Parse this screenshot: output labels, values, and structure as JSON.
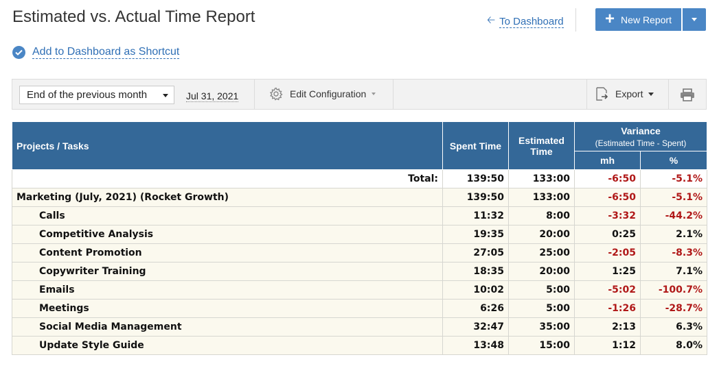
{
  "header": {
    "title": "Estimated vs. Actual Time Report",
    "to_dashboard": "To Dashboard",
    "new_report": "New Report",
    "add_shortcut": "Add to Dashboard as Shortcut"
  },
  "toolbar": {
    "period": "End of the previous month",
    "date": "Jul 31, 2021",
    "edit_config": "Edit Configuration",
    "export": "Export"
  },
  "table": {
    "headers": {
      "projects": "Projects / Tasks",
      "spent": "Spent Time",
      "estimated_line1": "Estimated",
      "estimated_line2": "Time",
      "variance": "Variance",
      "variance_sub": "(Estimated Time - Spent)",
      "mh": "mh",
      "pct": "%"
    },
    "total": {
      "label": "Total:",
      "spent": "139:50",
      "estimated": "133:00",
      "mh": "-6:50",
      "pct": "-5.1%"
    },
    "group": {
      "name": "Marketing (July, 2021) (Rocket Growth)",
      "spent": "139:50",
      "estimated": "133:00",
      "mh": "-6:50",
      "pct": "-5.1%"
    },
    "rows": [
      {
        "name": "Calls",
        "spent": "11:32",
        "estimated": "8:00",
        "mh": "-3:32",
        "pct": "-44.2%"
      },
      {
        "name": "Competitive Analysis",
        "spent": "19:35",
        "estimated": "20:00",
        "mh": "0:25",
        "pct": "2.1%"
      },
      {
        "name": "Content Promotion",
        "spent": "27:05",
        "estimated": "25:00",
        "mh": "-2:05",
        "pct": "-8.3%"
      },
      {
        "name": "Copywriter Training",
        "spent": "18:35",
        "estimated": "20:00",
        "mh": "1:25",
        "pct": "7.1%"
      },
      {
        "name": "Emails",
        "spent": "10:02",
        "estimated": "5:00",
        "mh": "-5:02",
        "pct": "-100.7%"
      },
      {
        "name": "Meetings",
        "spent": "6:26",
        "estimated": "5:00",
        "mh": "-1:26",
        "pct": "-28.7%"
      },
      {
        "name": "Social Media Management",
        "spent": "32:47",
        "estimated": "35:00",
        "mh": "2:13",
        "pct": "6.3%"
      },
      {
        "name": "Update Style Guide",
        "spent": "13:48",
        "estimated": "15:00",
        "mh": "1:12",
        "pct": "8.0%"
      }
    ]
  },
  "colors": {
    "accent": "#4a86c5",
    "header_bg": "#346898",
    "negative": "#b01818",
    "row_bg": "#fbf9ee"
  }
}
